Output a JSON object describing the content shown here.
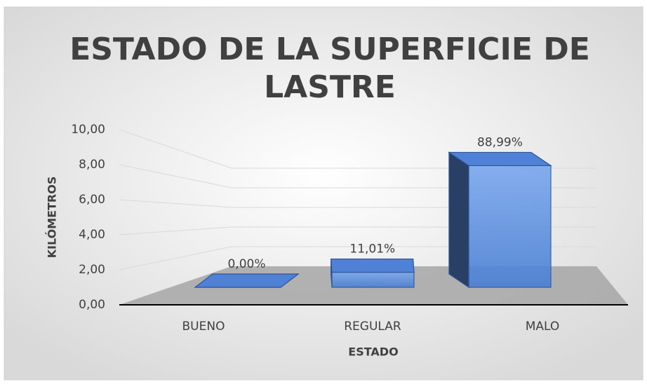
{
  "chart_data": {
    "type": "bar3d",
    "title": [
      "ESTADO DE LA SUPERFICIE DE",
      "LASTRE"
    ],
    "x_label": "ESTADO",
    "y_label": "KILÓMETROS",
    "categories": [
      "BUENO",
      "REGULAR",
      "MALO"
    ],
    "values": [
      0,
      1.1,
      8.9
    ],
    "shares": [
      0,
      11.01,
      88.99
    ],
    "share_labels": [
      "0,00%",
      "11,01%",
      "88,99%"
    ],
    "color": "#4f81d6",
    "ylim": [
      0,
      10
    ],
    "yticks": [
      {
        "value": 0,
        "label": "0,00"
      },
      {
        "value": 2,
        "label": "2,00"
      },
      {
        "value": 4,
        "label": "4,00"
      },
      {
        "value": 6,
        "label": "6,00"
      },
      {
        "value": 8,
        "label": "8,00"
      },
      {
        "value": 10,
        "label": "10,00"
      }
    ],
    "grid": true
  }
}
